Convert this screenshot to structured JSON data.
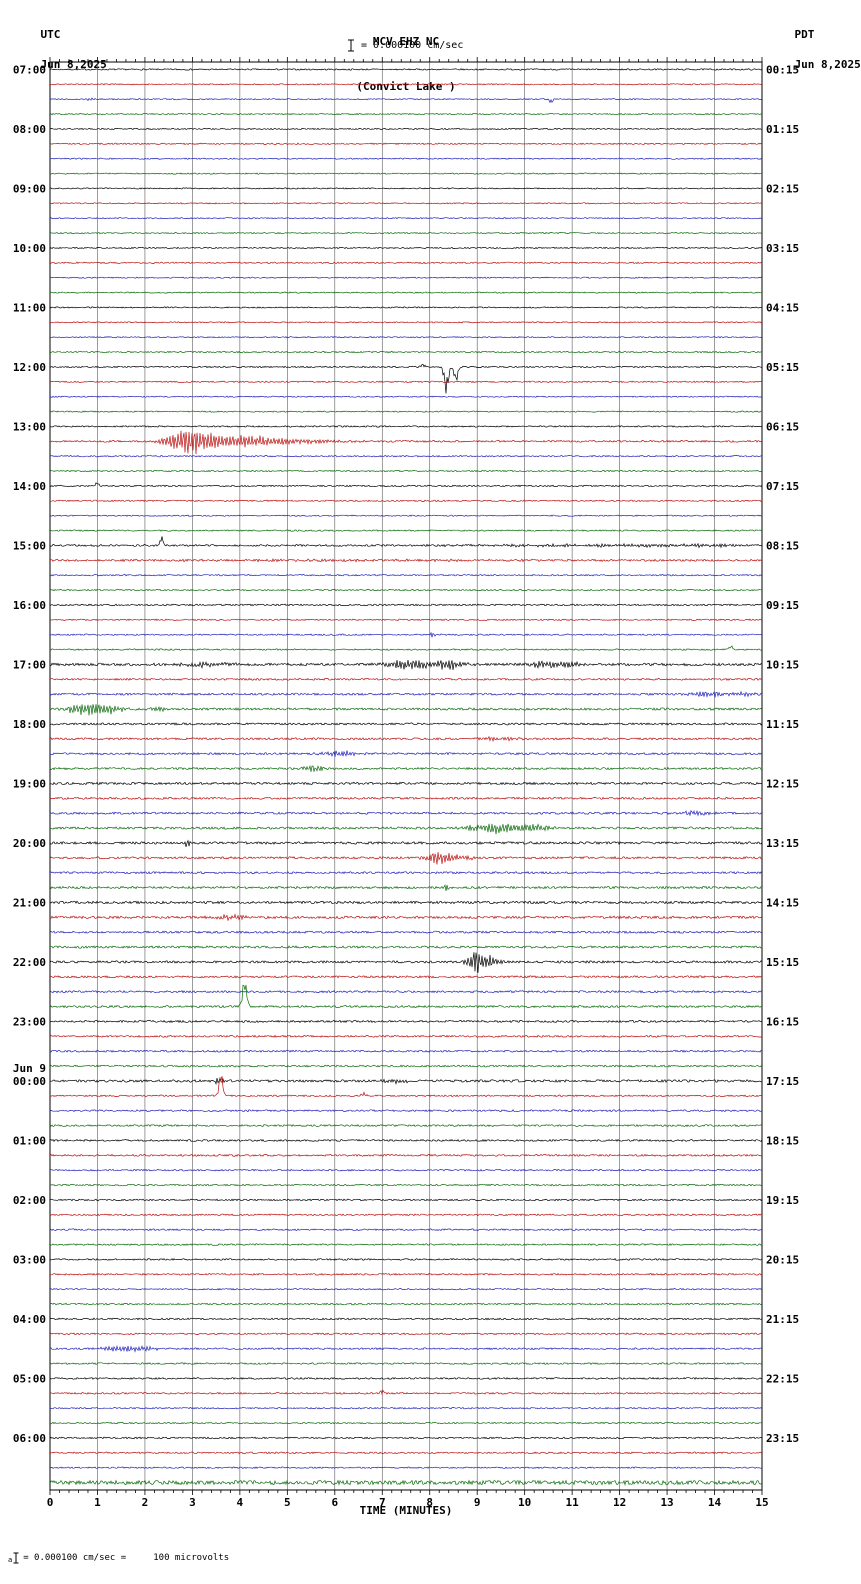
{
  "chart_data": {
    "type": "line",
    "title": "MCV EHZ NC",
    "subtitle": "(Convict Lake )",
    "scale_label": "= 0.000100 cm/sec",
    "xlabel": "TIME (MINUTES)",
    "x_range": [
      0,
      15
    ],
    "x_ticks": [
      "0",
      "1",
      "2",
      "3",
      "4",
      "5",
      "6",
      "7",
      "8",
      "9",
      "10",
      "11",
      "12",
      "13",
      "14",
      "15"
    ],
    "minutes_per_trace": 15,
    "traces_per_hour": 4,
    "color_cycle": [
      "black",
      "red",
      "blue",
      "green"
    ],
    "colors": {
      "black": "#000000",
      "red": "#bb1111",
      "blue": "#2222bb",
      "green": "#0b6b0b"
    },
    "left_axis": {
      "tz": "UTC",
      "date": "Jun 8,2025"
    },
    "right_axis": {
      "tz": "PDT",
      "date": "Jun 8,2025"
    },
    "events_format": "t=trace index in hour (0-3), x=minutes, a=oscillation amplitude px, b=one-sided bias px, w=width minutes",
    "rows": [
      {
        "utc": "07:00",
        "pdt": "00:15",
        "noise": [
          0.7,
          0.6,
          0.6,
          0.6
        ],
        "events": [
          {
            "t": 2,
            "x": 0.85,
            "a": 2,
            "w": 0.06
          },
          {
            "t": 2,
            "x": 10.55,
            "a": 2.5,
            "b": -2.5,
            "w": 0.05
          }
        ]
      },
      {
        "utc": "08:00",
        "pdt": "01:15",
        "noise": [
          0.6,
          0.7,
          0.6,
          0.6
        ],
        "events": []
      },
      {
        "utc": "09:00",
        "pdt": "02:15",
        "noise": [
          0.6,
          0.6,
          0.6,
          0.6
        ],
        "events": []
      },
      {
        "utc": "10:00",
        "pdt": "03:15",
        "noise": [
          0.6,
          0.7,
          0.6,
          0.6
        ],
        "events": []
      },
      {
        "utc": "11:00",
        "pdt": "04:15",
        "noise": [
          0.6,
          0.6,
          0.6,
          0.7
        ],
        "events": []
      },
      {
        "utc": "12:00",
        "pdt": "05:15",
        "noise": [
          0.7,
          0.7,
          0.6,
          0.6
        ],
        "events": [
          {
            "t": 0,
            "x": 7.85,
            "a": 3,
            "b": 2,
            "w": 0.05
          },
          {
            "t": 0,
            "x": 8.35,
            "a": 12,
            "b": -20,
            "w": 0.06
          },
          {
            "t": 0,
            "x": 8.55,
            "a": 7,
            "b": -12,
            "w": 0.05
          }
        ]
      },
      {
        "utc": "13:00",
        "pdt": "06:15",
        "noise": [
          0.7,
          0.9,
          0.7,
          0.7
        ],
        "events": [
          {
            "t": 1,
            "x": 2.9,
            "a": 13,
            "w": 0.45
          },
          {
            "t": 1,
            "x": 3.8,
            "a": 6,
            "w": 0.9
          },
          {
            "t": 1,
            "x": 5.0,
            "a": 2.5,
            "w": 1.2
          }
        ]
      },
      {
        "utc": "14:00",
        "pdt": "07:15",
        "noise": [
          0.7,
          0.7,
          0.6,
          0.7
        ],
        "events": [
          {
            "t": 0,
            "x": 1.0,
            "a": 3,
            "b": 3,
            "w": 0.04
          }
        ]
      },
      {
        "utc": "15:00",
        "pdt": "08:15",
        "noise": [
          0.9,
          0.9,
          0.7,
          0.7
        ],
        "events": [
          {
            "t": 0,
            "x": 2.35,
            "a": 4,
            "b": 7,
            "w": 0.04
          },
          {
            "t": 0,
            "x": 12.5,
            "a": 1.6,
            "w": 3.5
          },
          {
            "t": 1,
            "x": 6,
            "a": 0.8,
            "w": 6
          }
        ]
      },
      {
        "utc": "16:00",
        "pdt": "09:15",
        "noise": [
          0.8,
          0.7,
          0.7,
          0.7
        ],
        "events": [
          {
            "t": 2,
            "x": 8.05,
            "a": 3,
            "w": 0.06
          },
          {
            "t": 3,
            "x": 14.35,
            "a": 3,
            "b": 3,
            "w": 0.05
          }
        ]
      },
      {
        "utc": "17:00",
        "pdt": "10:15",
        "noise": [
          1.3,
          0.9,
          1.0,
          1.1
        ],
        "events": [
          {
            "t": 0,
            "x": 3.3,
            "a": 3,
            "w": 0.5
          },
          {
            "t": 0,
            "x": 7.6,
            "a": 6,
            "w": 0.5
          },
          {
            "t": 0,
            "x": 8.4,
            "a": 5,
            "w": 0.3
          },
          {
            "t": 0,
            "x": 10.4,
            "a": 4,
            "w": 0.35
          },
          {
            "t": 0,
            "x": 11.0,
            "a": 3,
            "w": 0.3
          },
          {
            "t": 2,
            "x": 13.8,
            "a": 3.5,
            "w": 0.4
          },
          {
            "t": 2,
            "x": 14.6,
            "a": 2.5,
            "w": 0.25
          },
          {
            "t": 3,
            "x": 0.75,
            "a": 7,
            "w": 0.4
          },
          {
            "t": 3,
            "x": 1.3,
            "a": 4,
            "w": 0.3
          },
          {
            "t": 3,
            "x": 2.3,
            "a": 2,
            "w": 0.3
          }
        ]
      },
      {
        "utc": "18:00",
        "pdt": "11:15",
        "noise": [
          1.0,
          1.0,
          1.0,
          1.0
        ],
        "events": [
          {
            "t": 1,
            "x": 9.5,
            "a": 2,
            "w": 0.4
          },
          {
            "t": 2,
            "x": 6.1,
            "a": 4,
            "w": 0.35
          },
          {
            "t": 3,
            "x": 5.55,
            "a": 4.5,
            "w": 0.2
          }
        ]
      },
      {
        "utc": "19:00",
        "pdt": "12:15",
        "noise": [
          1.1,
          1.0,
          1.0,
          1.1
        ],
        "events": [
          {
            "t": 2,
            "x": 13.6,
            "a": 2.5,
            "w": 0.35
          },
          {
            "t": 3,
            "x": 9.4,
            "a": 5.5,
            "w": 0.6
          },
          {
            "t": 3,
            "x": 10.2,
            "a": 3.5,
            "w": 0.35
          }
        ]
      },
      {
        "utc": "20:00",
        "pdt": "13:15",
        "noise": [
          1.2,
          1.1,
          1.0,
          1.1
        ],
        "events": [
          {
            "t": 0,
            "x": 2.9,
            "a": 6,
            "w": 0.06
          },
          {
            "t": 1,
            "x": 8.15,
            "a": 6.5,
            "w": 0.25
          },
          {
            "t": 1,
            "x": 8.6,
            "a": 3,
            "w": 0.3
          },
          {
            "t": 3,
            "x": 8.35,
            "a": 5,
            "w": 0.08
          }
        ]
      },
      {
        "utc": "21:00",
        "pdt": "14:15",
        "noise": [
          1.2,
          1.2,
          1.0,
          1.1
        ],
        "events": [
          {
            "t": 1,
            "x": 3.9,
            "a": 3,
            "w": 0.35
          }
        ]
      },
      {
        "utc": "22:00",
        "pdt": "15:15",
        "noise": [
          1.1,
          1.0,
          1.0,
          1.0
        ],
        "events": [
          {
            "t": 0,
            "x": 8.95,
            "a": 13,
            "w": 0.15
          },
          {
            "t": 0,
            "x": 9.25,
            "a": 6,
            "w": 0.2
          },
          {
            "t": 3,
            "x": 4.1,
            "a": 9,
            "b": 22,
            "w": 0.06
          }
        ]
      },
      {
        "utc": "23:00",
        "pdt": "16:15",
        "noise": [
          1.0,
          0.9,
          0.9,
          0.9
        ],
        "events": []
      },
      {
        "utc": "00:00",
        "pdt": "17:15",
        "date": "Jun 9",
        "noise": [
          1.2,
          0.8,
          0.9,
          0.9
        ],
        "events": [
          {
            "t": 0,
            "x": 3.55,
            "a": 3.5,
            "w": 0.12
          },
          {
            "t": 0,
            "x": 7.3,
            "a": 2,
            "w": 0.3
          },
          {
            "t": 1,
            "x": 3.6,
            "a": 8,
            "b": 20,
            "w": 0.05
          },
          {
            "t": 1,
            "x": 6.6,
            "a": 2.5,
            "b": 2,
            "w": 0.06
          }
        ]
      },
      {
        "utc": "01:00",
        "pdt": "18:15",
        "noise": [
          0.9,
          0.9,
          0.8,
          0.8
        ],
        "events": []
      },
      {
        "utc": "02:00",
        "pdt": "19:15",
        "noise": [
          0.8,
          0.8,
          0.8,
          0.8
        ],
        "events": []
      },
      {
        "utc": "03:00",
        "pdt": "20:15",
        "noise": [
          0.8,
          0.8,
          0.7,
          0.8
        ],
        "events": []
      },
      {
        "utc": "04:00",
        "pdt": "21:15",
        "noise": [
          0.8,
          0.8,
          0.8,
          0.8
        ],
        "events": [
          {
            "t": 2,
            "x": 1.5,
            "a": 3,
            "w": 0.45
          },
          {
            "t": 2,
            "x": 2.0,
            "a": 2,
            "w": 0.3
          }
        ]
      },
      {
        "utc": "05:00",
        "pdt": "22:15",
        "noise": [
          0.8,
          0.8,
          0.7,
          0.7
        ],
        "events": [
          {
            "t": 1,
            "x": 7.0,
            "a": 2.5,
            "b": 2,
            "w": 0.05
          }
        ]
      },
      {
        "utc": "06:00",
        "pdt": "23:15",
        "noise": [
          0.8,
          0.8,
          0.7,
          2.0
        ],
        "events": []
      }
    ]
  },
  "footer": {
    "sub_prefix": "a",
    "scale_note": "= 0.000100 cm/sec =     100 microvolts"
  }
}
